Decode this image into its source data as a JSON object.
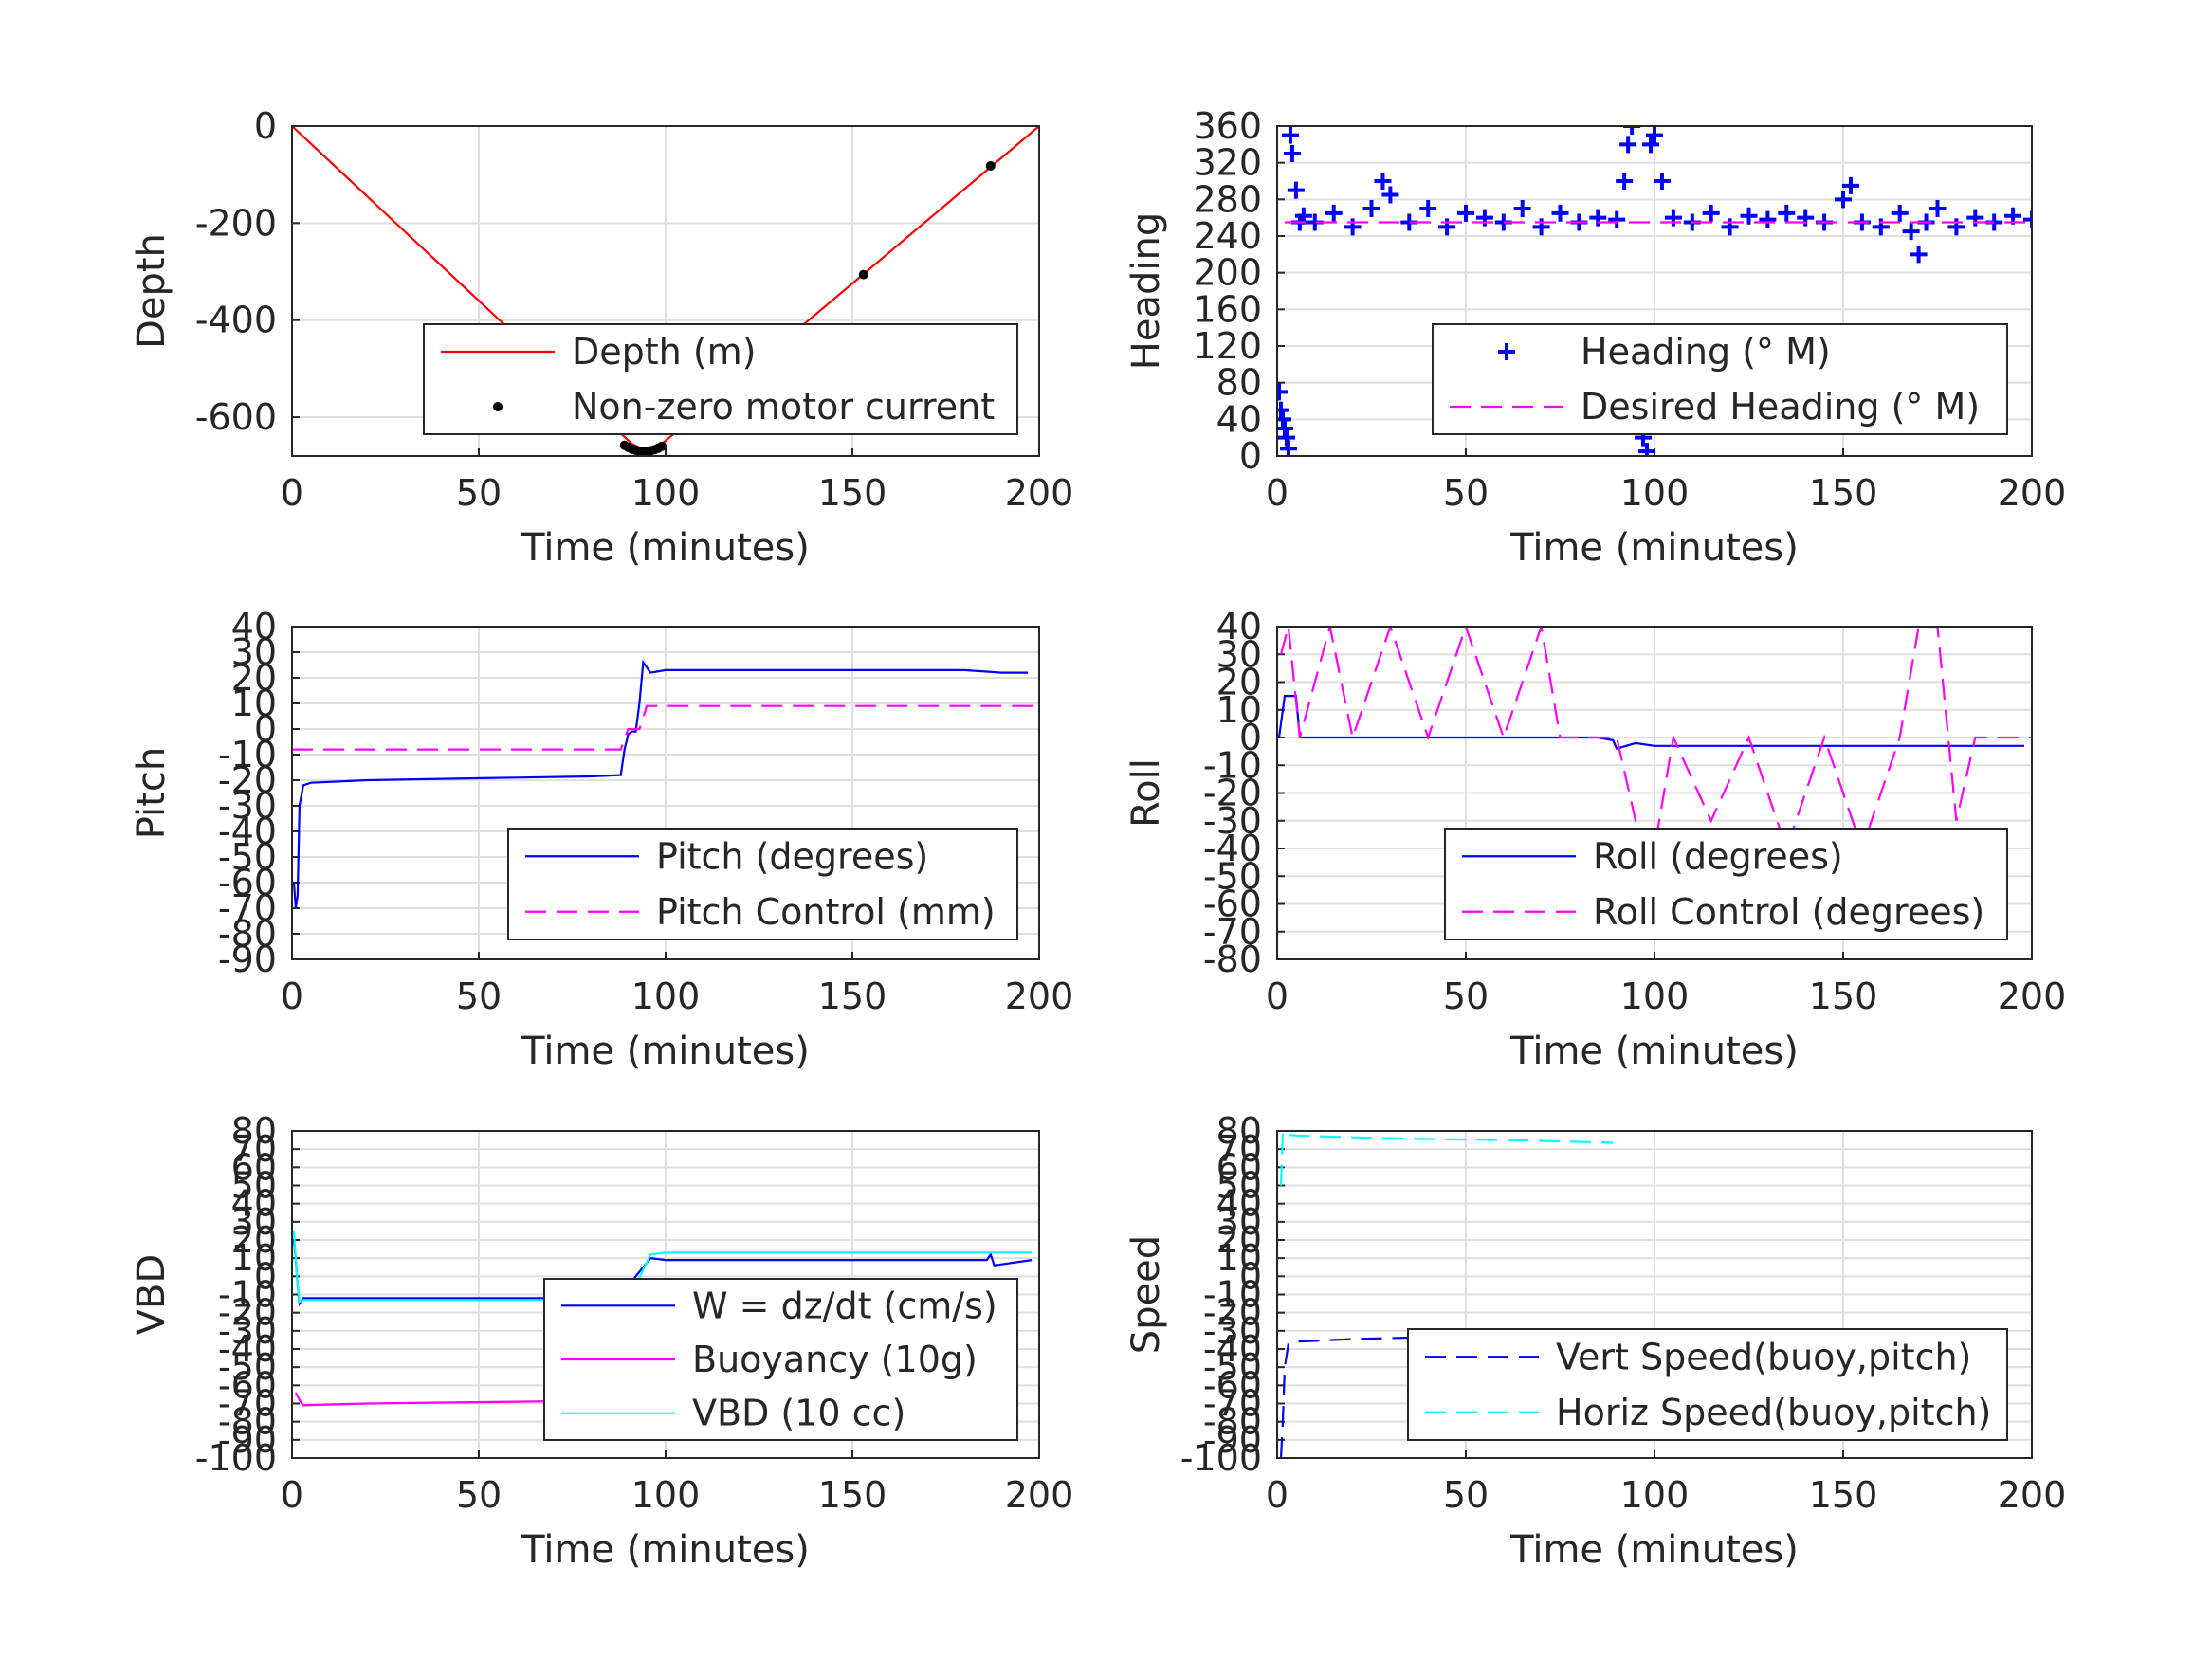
{
  "chart_data": [
    {
      "type": "line",
      "xlabel": "Time (minutes)",
      "ylabel": "Depth",
      "xlim": [
        0,
        200
      ],
      "ylim": [
        -680,
        0
      ],
      "xticks": [
        "0",
        "50",
        "100",
        "150",
        "200"
      ],
      "yticks": [
        "0",
        "-200",
        "-400",
        "-600"
      ],
      "grid": true,
      "legend_position": "lower-right",
      "series": [
        {
          "name": "Depth (m)",
          "style": "solid",
          "marker": "none",
          "color": "#ff0000",
          "x": [
            0,
            91,
            95,
            99,
            200
          ],
          "y": [
            0,
            -655,
            -670,
            -655,
            0
          ]
        },
        {
          "name": "Non-zero motor current",
          "style": "none",
          "marker": "dot",
          "color": "#000000",
          "x": [
            89,
            90,
            91,
            92,
            93,
            94,
            95,
            96,
            97,
            98,
            99,
            153,
            187
          ],
          "y": [
            -658,
            -662,
            -666,
            -668,
            -670,
            -671,
            -670,
            -669,
            -667,
            -664,
            -660,
            -306,
            -82
          ]
        }
      ]
    },
    {
      "type": "line",
      "xlabel": "Time (minutes)",
      "ylabel": "Heading",
      "xlim": [
        0,
        200
      ],
      "ylim": [
        0,
        360
      ],
      "xticks": [
        "0",
        "50",
        "100",
        "150",
        "200"
      ],
      "yticks": [
        "0",
        "40",
        "80",
        "120",
        "160",
        "200",
        "240",
        "280",
        "320",
        "360"
      ],
      "grid": true,
      "legend_position": "lower-right",
      "series": [
        {
          "name": "Heading (° M)",
          "style": "none",
          "marker": "plus",
          "color": "#0000ff",
          "x": [
            0.5,
            1,
            1.5,
            2,
            2.5,
            3,
            3.5,
            4,
            5,
            6,
            7,
            10,
            15,
            20,
            25,
            28,
            30,
            35,
            40,
            45,
            50,
            55,
            60,
            65,
            70,
            75,
            80,
            85,
            90,
            92,
            93,
            94,
            95,
            96,
            97,
            98,
            99,
            100,
            102,
            105,
            110,
            115,
            120,
            125,
            130,
            135,
            140,
            145,
            150,
            152,
            155,
            160,
            165,
            168,
            170,
            172,
            175,
            180,
            185,
            190,
            195,
            200
          ],
          "y": [
            70,
            50,
            40,
            30,
            20,
            8,
            350,
            330,
            290,
            255,
            262,
            255,
            265,
            250,
            270,
            300,
            285,
            255,
            270,
            250,
            265,
            260,
            255,
            270,
            250,
            265,
            255,
            260,
            258,
            300,
            340,
            360,
            60,
            40,
            20,
            5,
            340,
            350,
            300,
            260,
            255,
            265,
            250,
            262,
            258,
            265,
            260,
            255,
            280,
            295,
            255,
            250,
            265,
            245,
            220,
            255,
            270,
            250,
            260,
            255,
            262,
            258
          ]
        },
        {
          "name": "Desired Heading (° M)",
          "style": "dashed",
          "marker": "none",
          "color": "#ff00ff",
          "x": [
            2,
            92,
            99,
            200
          ],
          "y": [
            255,
            255,
            255,
            255
          ]
        }
      ]
    },
    {
      "type": "line",
      "xlabel": "Time (minutes)",
      "ylabel": "Pitch",
      "xlim": [
        0,
        200
      ],
      "ylim": [
        -90,
        40
      ],
      "xticks": [
        "0",
        "50",
        "100",
        "150",
        "200"
      ],
      "yticks": [
        "-90",
        "-80",
        "-70",
        "-60",
        "-50",
        "-40",
        "-30",
        "-20",
        "-10",
        "0",
        "10",
        "20",
        "30",
        "40"
      ],
      "grid": true,
      "legend_position": "lower-right",
      "series": [
        {
          "name": "Pitch (degrees)",
          "style": "solid",
          "marker": "none",
          "color": "#0000ff",
          "x": [
            0.5,
            1,
            1.5,
            2,
            3,
            5,
            20,
            40,
            60,
            80,
            88,
            89,
            90,
            91,
            92,
            93,
            94,
            95,
            96,
            100,
            120,
            140,
            160,
            180,
            190,
            197
          ],
          "y": [
            -60,
            -70,
            -65,
            -30,
            -22,
            -21,
            -20,
            -19.5,
            -19,
            -18.5,
            -18,
            -8,
            -2,
            -1,
            -1,
            10,
            26,
            24,
            22,
            23,
            23,
            23,
            23,
            23,
            22,
            22
          ]
        },
        {
          "name": "Pitch Control (mm)",
          "style": "dashed",
          "marker": "none",
          "color": "#ff00ff",
          "x": [
            0,
            88,
            90,
            93,
            95,
            100,
            150,
            200
          ],
          "y": [
            -8,
            -8,
            0,
            0,
            9,
            9,
            9,
            9
          ]
        }
      ]
    },
    {
      "type": "line",
      "xlabel": "Time (minutes)",
      "ylabel": "Roll",
      "xlim": [
        0,
        200
      ],
      "ylim": [
        -80,
        40
      ],
      "xticks": [
        "0",
        "50",
        "100",
        "150",
        "200"
      ],
      "yticks": [
        "-80",
        "-70",
        "-60",
        "-50",
        "-40",
        "-30",
        "-20",
        "-10",
        "0",
        "10",
        "20",
        "30",
        "40"
      ],
      "grid": true,
      "legend_position": "lower-right",
      "series": [
        {
          "name": "Roll (degrees)",
          "style": "solid",
          "marker": "none",
          "color": "#0000ff",
          "x": [
            0.5,
            1.5,
            2,
            5,
            6,
            15,
            20,
            25,
            30,
            35,
            40,
            45,
            50,
            55,
            60,
            65,
            70,
            75,
            80,
            85,
            89,
            90,
            95,
            100,
            105,
            110,
            120,
            130,
            140,
            150,
            155,
            160,
            165,
            170,
            175,
            180,
            185,
            190,
            198
          ],
          "y": [
            0,
            10,
            15,
            15,
            0,
            0,
            0,
            0,
            0,
            0,
            0,
            0,
            0,
            0,
            0,
            0,
            0,
            0,
            0,
            0,
            -1,
            -4,
            -2,
            -3,
            -3,
            -3,
            -3,
            -3,
            -3,
            -3,
            -3,
            -3,
            -3,
            -3,
            -3,
            -3,
            -3,
            -3,
            -3
          ]
        },
        {
          "name": "Roll Control (degrees)",
          "style": "dashed",
          "marker": "none",
          "color": "#ff00ff",
          "x": [
            1,
            3,
            6,
            14,
            20,
            30,
            40,
            50,
            60,
            70,
            75,
            90,
            95,
            100,
            105,
            115,
            125,
            135,
            145,
            155,
            165,
            170,
            175,
            180,
            185,
            200
          ],
          "y": [
            30,
            40,
            0,
            40,
            0,
            40,
            0,
            40,
            0,
            40,
            0,
            0,
            -30,
            -40,
            0,
            -30,
            0,
            -40,
            0,
            -40,
            0,
            40,
            40,
            -30,
            0,
            0
          ]
        }
      ]
    },
    {
      "type": "line",
      "xlabel": "Time (minutes)",
      "ylabel": "VBD",
      "xlim": [
        0,
        200
      ],
      "ylim": [
        -100,
        80
      ],
      "xticks": [
        "0",
        "50",
        "100",
        "150",
        "200"
      ],
      "yticks": [
        "-100",
        "-90",
        "-80",
        "-70",
        "-60",
        "-50",
        "-40",
        "-30",
        "-20",
        "-10",
        "0",
        "10",
        "20",
        "30",
        "40",
        "50",
        "60",
        "70",
        "80"
      ],
      "grid": true,
      "legend_position": "lower-right",
      "series": [
        {
          "name": "W = dz/dt (cm/s)",
          "style": "solid",
          "marker": "none",
          "color": "#0000ff",
          "x": [
            0.5,
            1,
            1.5,
            2,
            3,
            5,
            20,
            40,
            60,
            80,
            88,
            92,
            96,
            100,
            120,
            140,
            160,
            180,
            186,
            187,
            188,
            198
          ],
          "y": [
            20,
            10,
            -5,
            -15,
            -12,
            -12,
            -12,
            -12,
            -12,
            -12,
            -12,
            0,
            10,
            9,
            9,
            9,
            9,
            9,
            9,
            12,
            6,
            9
          ]
        },
        {
          "name": "Buoyancy (10g)",
          "style": "solid",
          "marker": "none",
          "color": "#ff00ff",
          "x": [
            1,
            2,
            3,
            20,
            40,
            60,
            80,
            88
          ],
          "y": [
            -64,
            -68,
            -71,
            -70,
            -69.5,
            -69,
            -68.5,
            -68
          ]
        },
        {
          "name": "VBD (10 cc)",
          "style": "solid",
          "marker": "none",
          "color": "#00ffff",
          "x": [
            0.5,
            1,
            1.5,
            2,
            3,
            20,
            40,
            60,
            80,
            88,
            92,
            96,
            100,
            120,
            140,
            160,
            180,
            198
          ],
          "y": [
            25,
            10,
            -5,
            -14,
            -13,
            -13,
            -13,
            -13,
            -13,
            -13,
            -5,
            12,
            13,
            13,
            13,
            13,
            13,
            13
          ]
        }
      ]
    },
    {
      "type": "line",
      "xlabel": "Time (minutes)",
      "ylabel": "Speed",
      "xlim": [
        0,
        200
      ],
      "ylim": [
        -100,
        80
      ],
      "xticks": [
        "0",
        "50",
        "100",
        "150",
        "200"
      ],
      "yticks": [
        "-100",
        "-90",
        "-80",
        "-70",
        "-60",
        "-50",
        "-40",
        "-30",
        "-20",
        "-10",
        "0",
        "10",
        "20",
        "30",
        "40",
        "50",
        "60",
        "70",
        "80"
      ],
      "grid": true,
      "legend_position": "lower-right",
      "series": [
        {
          "name": "Vert Speed(buoy,pitch)",
          "style": "dashed",
          "marker": "none",
          "color": "#0000ff",
          "x": [
            1,
            1.5,
            2,
            3,
            5,
            10,
            20,
            40,
            60,
            80,
            89
          ],
          "y": [
            -100,
            -80,
            -50,
            -37,
            -36,
            -35.5,
            -34.5,
            -33.5,
            -33,
            -32.5,
            -32
          ]
        },
        {
          "name": "Horiz Speed(buoy,pitch)",
          "style": "dashed",
          "marker": "none",
          "color": "#00ffff",
          "x": [
            1,
            1.5,
            2,
            5,
            20,
            40,
            60,
            80,
            89
          ],
          "y": [
            50,
            80,
            78,
            77.5,
            76.5,
            75.5,
            75,
            74,
            73.5
          ]
        }
      ]
    }
  ]
}
